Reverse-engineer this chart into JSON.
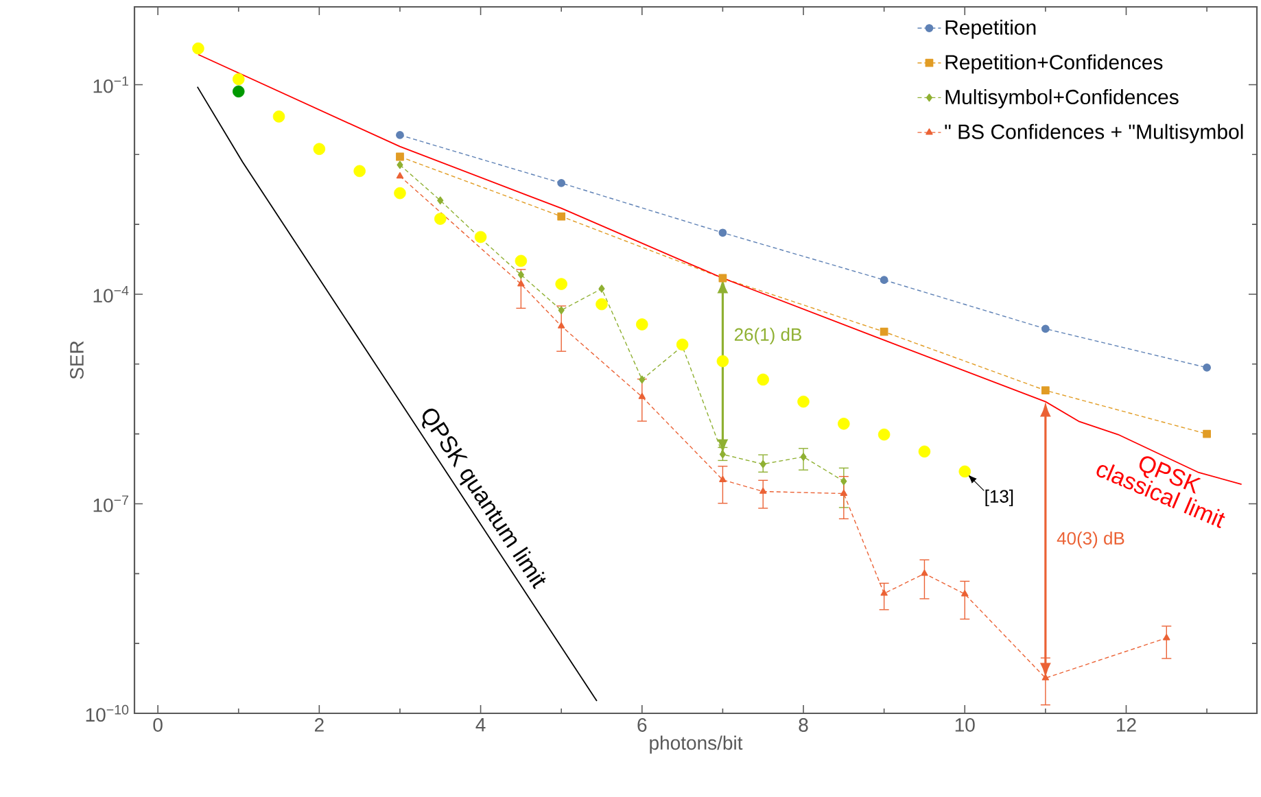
{
  "chart_data": {
    "type": "line",
    "xlabel": "photons/bit",
    "ylabel": "SER",
    "log": "y",
    "xlim": [
      -0.29,
      13.62
    ],
    "ylim": [
      1e-10,
      1.3
    ],
    "xticks": [
      0,
      {
        "value": 1,
        "label": null
      },
      2,
      {
        "value": 3,
        "label": null
      },
      4,
      {
        "value": 5,
        "label": null
      },
      6,
      {
        "value": 7,
        "label": null
      },
      8,
      {
        "value": 9,
        "label": null
      },
      10,
      {
        "value": 11,
        "label": null
      },
      12,
      {
        "value": 13,
        "label": null
      }
    ],
    "yticks": [
      {
        "value": 1e-10,
        "label": "10$^{−10}$"
      },
      {
        "value": 1e-09,
        "label": null
      },
      {
        "value": 1e-08,
        "label": null
      },
      {
        "value": 1e-07,
        "label": "10$^{−7}$"
      },
      {
        "value": 1e-06,
        "label": null
      },
      {
        "value": 1e-05,
        "label": null
      },
      {
        "value": 0.0001,
        "label": "10$^{−4}$"
      },
      {
        "value": 0.001,
        "label": null
      },
      {
        "value": 0.01,
        "label": null
      },
      {
        "value": 0.1,
        "label": "10$^{−1}$"
      }
    ],
    "legend": "top right",
    "series": [
      {
        "name": "Repetition",
        "color": "#5e81b5",
        "marker": "circle",
        "line_style": "dashed",
        "x": [
          3,
          5,
          7,
          9,
          11,
          13
        ],
        "values": [
          0.019,
          0.0039,
          0.00076,
          0.00016,
          3.2e-05,
          8.9e-06
        ]
      },
      {
        "name": "Repetition+Confidences",
        "color": "#e19c24",
        "marker": "square",
        "line_style": "dashed",
        "x": [
          3,
          5,
          7,
          9,
          11,
          13
        ],
        "values": [
          0.0093,
          0.0013,
          0.00017,
          2.9e-05,
          4.2e-06,
          1e-06
        ]
      },
      {
        "name": "Multisymbol+Confidences",
        "color": "#8fb032",
        "marker": "diamond",
        "line_style": "dashed",
        "x": [
          3,
          3.5,
          4,
          4.5,
          5,
          5.5,
          6,
          6.5,
          7,
          7.5,
          8,
          8.5
        ],
        "values": [
          0.0071,
          0.0022,
          0.00063,
          0.00019,
          5.9e-05,
          0.00012,
          6e-06,
          1.8e-05,
          5.1e-07,
          3.7e-07,
          4.7e-07,
          2.1e-07
        ],
        "errors": [
          null,
          null,
          null,
          null,
          null,
          null,
          null,
          null,
          [
            4.1e-07,
            6.5e-07
          ],
          [
            2.8e-07,
            5.1e-07
          ],
          [
            3e-07,
            6.3e-07
          ],
          [
            8.7e-08,
            3.3e-07
          ]
        ]
      },
      {
        "name": "\" BS Confidences + \"Multisymbol",
        "color": "#eb6235",
        "marker": "triangle",
        "line_style": "dashed",
        "x": [
          3,
          4.5,
          5,
          6,
          7,
          7.5,
          8.5,
          9,
          9.5,
          10,
          11,
          12.5
        ],
        "values": [
          0.0049,
          0.00014,
          3.5e-05,
          3.4e-06,
          2.2e-07,
          1.5e-07,
          1.4e-07,
          5.2e-09,
          1e-08,
          5.1e-09,
          3.2e-10,
          1.2e-09
        ],
        "errors": [
          null,
          [
            6.2e-05,
            0.00023
          ],
          [
            1.5e-05,
            6.9e-05
          ],
          [
            1.5e-06,
            6.2e-06
          ],
          [
            1e-07,
            3.5e-07
          ],
          [
            8.5e-08,
            2.2e-07
          ],
          [
            6e-08,
            2.5e-07
          ],
          [
            3e-09,
            7.4e-09
          ],
          [
            4.3e-09,
            1.6e-08
          ],
          [
            2.2e-09,
            7.9e-09
          ],
          [
            1.3e-10,
            6.3e-10
          ],
          [
            6e-10,
            1.8e-09
          ]
        ]
      },
      {
        "type": "scatter",
        "color": "#ffff00",
        "marker": "circle",
        "x": [
          0.5,
          1,
          1.5,
          2,
          2.5,
          3,
          3.5,
          4,
          4.5,
          5,
          5.5,
          6,
          6.5,
          7,
          7.5,
          8,
          8.5,
          9,
          9.5,
          10
        ],
        "values": [
          0.33,
          0.12,
          0.035,
          0.012,
          0.0058,
          0.0028,
          0.0012,
          0.00066,
          0.0003,
          0.00014,
          7.2e-05,
          3.7e-05,
          1.9e-05,
          1.1e-05,
          6e-06,
          2.9e-06,
          1.4e-06,
          9.8e-07,
          5.6e-07,
          2.9e-07
        ]
      },
      {
        "type": "scatter",
        "color": "#009900",
        "marker": "circle",
        "x": [
          1
        ],
        "values": [
          0.08
        ]
      },
      {
        "color": "#ff0000",
        "line_style": "solid",
        "x": [
          0.5,
          3,
          5,
          7,
          9,
          11,
          11.42,
          11.9,
          12.9,
          13.43
        ],
        "values": [
          0.27,
          0.013,
          0.0017,
          0.00017,
          2.2e-05,
          2.9e-06,
          1.5e-06,
          9.8e-07,
          2.8e-07,
          1.9e-07
        ]
      },
      {
        "color": "#000000",
        "line_style": "solid",
        "x": [
          0.49,
          1.05,
          5.44
        ],
        "values": [
          0.093,
          0.0078,
          1.5e-10
        ]
      }
    ],
    "annotations": [
      "26(1) dB",
      "40(3) dB",
      {
        "text": "[13]",
        "x": 10,
        "y": 2.9e-07
      },
      {
        "text": "QPSK quantum limit",
        "x": 3.86,
        "y": 9.1e-08
      },
      {
        "text": "QPSK classical limit",
        "x": 12.6,
        "y": 4.1e-07
      }
    ]
  }
}
